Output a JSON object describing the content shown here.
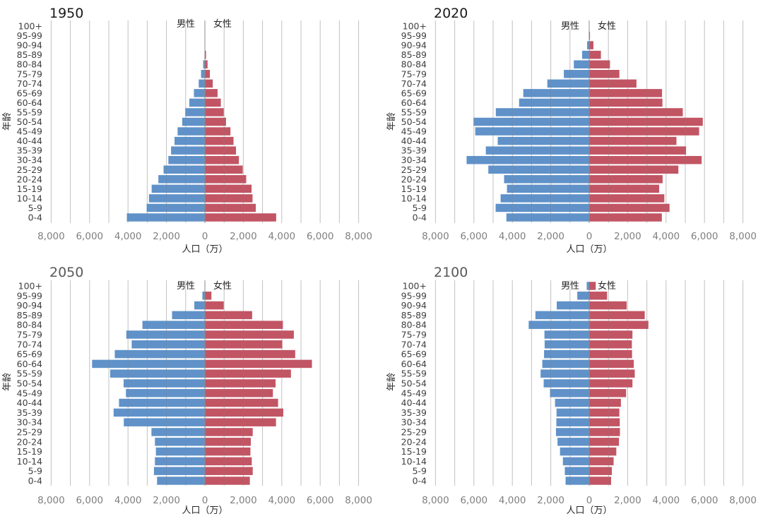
{
  "chart_data": [
    {
      "type": "bar",
      "orientation": "horizontal-population-pyramid",
      "title": "1950",
      "xlabel": "人口（万）",
      "ylabel": "年龄",
      "xlim": [
        -8000,
        8000
      ],
      "xticks": [
        "8,000",
        "6,000",
        "4,000",
        "2,000",
        "0",
        "2,000",
        "4,000",
        "6,000",
        "8,000"
      ],
      "grid": true,
      "legend": {
        "male": "男性",
        "female": "女性",
        "placement": "top-center"
      },
      "categories": [
        "100+",
        "95-99",
        "90-94",
        "85-89",
        "80-84",
        "75-79",
        "70-74",
        "65-69",
        "60-64",
        "55-59",
        "50-54",
        "45-49",
        "40-44",
        "35-39",
        "30-34",
        "25-29",
        "20-24",
        "15-19",
        "10-14",
        "5-9",
        "0-4"
      ],
      "series": [
        {
          "name": "男性",
          "color": "#5B8EC7",
          "values": [
            0,
            0,
            0,
            10,
            90,
            200,
            320,
            570,
            810,
            1020,
            1180,
            1420,
            1580,
            1760,
            1900,
            2150,
            2420,
            2770,
            2910,
            3030,
            4060
          ]
        },
        {
          "name": "女性",
          "color": "#C0505F",
          "values": [
            0,
            0,
            0,
            60,
            140,
            260,
            410,
            660,
            830,
            980,
            1100,
            1330,
            1490,
            1620,
            1770,
            1970,
            2150,
            2430,
            2480,
            2650,
            3710
          ]
        }
      ]
    },
    {
      "type": "bar",
      "orientation": "horizontal-population-pyramid",
      "title": "2020",
      "xlabel": "人口（万）",
      "ylabel": "年龄",
      "xlim": [
        -8000,
        8000
      ],
      "xticks": [
        "8,000",
        "6,000",
        "4,000",
        "2,000",
        "0",
        "2,000",
        "4,000",
        "6,000",
        "8,000"
      ],
      "grid": true,
      "legend": {
        "male": "男性",
        "female": "女性",
        "placement": "top-center"
      },
      "categories": [
        "100+",
        "95-99",
        "90-94",
        "85-89",
        "80-84",
        "75-79",
        "70-74",
        "65-69",
        "60-64",
        "55-59",
        "50-54",
        "45-49",
        "40-44",
        "35-39",
        "30-34",
        "25-29",
        "20-24",
        "15-19",
        "10-14",
        "5-9",
        "0-4"
      ],
      "series": [
        {
          "name": "男性",
          "color": "#5B8EC7",
          "values": [
            0,
            10,
            110,
            370,
            800,
            1320,
            2180,
            3430,
            3650,
            4860,
            6020,
            5930,
            4760,
            5380,
            6380,
            5250,
            4430,
            4280,
            4610,
            4870,
            4310
          ]
        },
        {
          "name": "女性",
          "color": "#C0505F",
          "values": [
            0,
            40,
            220,
            610,
            1080,
            1570,
            2460,
            3790,
            3810,
            4870,
            5910,
            5720,
            4540,
            5040,
            5850,
            4640,
            3820,
            3640,
            3910,
            4180,
            3780
          ]
        }
      ]
    },
    {
      "type": "bar",
      "orientation": "horizontal-population-pyramid",
      "title": "2050",
      "xlabel": "人口（万）",
      "ylabel": "年龄",
      "xlim": [
        -8000,
        8000
      ],
      "xticks": [
        "8,000",
        "6,000",
        "4,000",
        "2,000",
        "0",
        "2,000",
        "4,000",
        "6,000",
        "8,000"
      ],
      "grid": true,
      "legend": {
        "male": "男性",
        "female": "女性",
        "placement": "top-center"
      },
      "categories": [
        "100+",
        "95-99",
        "90-94",
        "85-89",
        "80-84",
        "75-79",
        "70-74",
        "65-69",
        "60-64",
        "55-59",
        "50-54",
        "45-49",
        "40-44",
        "35-39",
        "30-34",
        "25-29",
        "20-24",
        "15-19",
        "10-14",
        "5-9",
        "0-4"
      ],
      "series": [
        {
          "name": "男性",
          "color": "#5B8EC7",
          "values": [
            10,
            130,
            550,
            1710,
            3250,
            4090,
            3810,
            4690,
            5870,
            4930,
            4230,
            4110,
            4470,
            4750,
            4220,
            2780,
            2600,
            2550,
            2600,
            2650,
            2490
          ]
        },
        {
          "name": "女性",
          "color": "#C0505F",
          "values": [
            20,
            340,
            980,
            2460,
            4060,
            4630,
            4030,
            4700,
            5570,
            4480,
            3680,
            3540,
            3810,
            4080,
            3700,
            2490,
            2390,
            2370,
            2440,
            2490,
            2340
          ]
        }
      ]
    },
    {
      "type": "bar",
      "orientation": "horizontal-population-pyramid",
      "title": "2100",
      "xlabel": "人口（万）",
      "ylabel": "年龄",
      "xlim": [
        -8000,
        8000
      ],
      "xticks": [
        "8,000",
        "6,000",
        "4,000",
        "2,000",
        "0",
        "2,000",
        "4,000",
        "6,000",
        "8,000"
      ],
      "grid": true,
      "legend": {
        "male": "男性",
        "female": "女性",
        "placement": "top-center"
      },
      "categories": [
        "100+",
        "95-99",
        "90-94",
        "85-89",
        "80-84",
        "75-79",
        "70-74",
        "65-69",
        "60-64",
        "55-59",
        "50-54",
        "45-49",
        "40-44",
        "35-39",
        "30-34",
        "25-29",
        "20-24",
        "15-19",
        "10-14",
        "5-9",
        "0-4"
      ],
      "series": [
        {
          "name": "男性",
          "color": "#5B8EC7",
          "values": [
            130,
            620,
            1690,
            2800,
            3150,
            2330,
            2320,
            2350,
            2440,
            2530,
            2370,
            2040,
            1780,
            1700,
            1710,
            1730,
            1650,
            1520,
            1370,
            1270,
            1230
          ]
        },
        {
          "name": "女性",
          "color": "#C0505F",
          "values": [
            340,
            930,
            1950,
            2890,
            3080,
            2250,
            2220,
            2230,
            2320,
            2370,
            2250,
            1920,
            1650,
            1570,
            1590,
            1600,
            1550,
            1410,
            1270,
            1180,
            1140
          ]
        }
      ]
    }
  ]
}
